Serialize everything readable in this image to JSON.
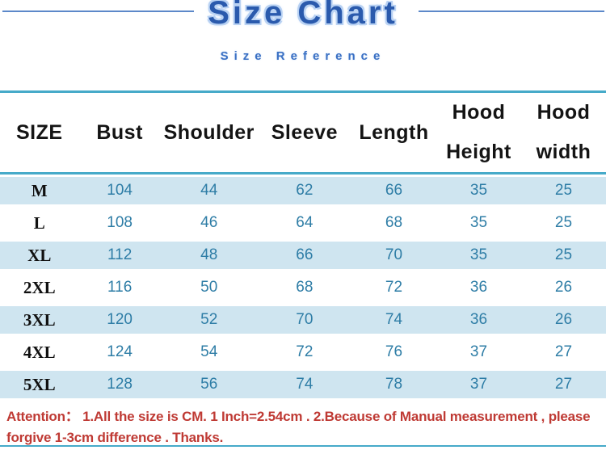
{
  "header": {
    "title": "Size Chart",
    "subtitle": "Size Reference"
  },
  "table": {
    "columns": [
      {
        "line1": "SIZE",
        "line2": ""
      },
      {
        "line1": "Bust",
        "line2": ""
      },
      {
        "line1": "Shoulder",
        "line2": ""
      },
      {
        "line1": "Sleeve",
        "line2": ""
      },
      {
        "line1": "Length",
        "line2": ""
      },
      {
        "line1": "Hood",
        "line2": "Height"
      },
      {
        "line1": "Hood",
        "line2": "width"
      }
    ],
    "rows": [
      {
        "size": "M",
        "values": [
          104,
          44,
          62,
          66,
          35,
          25
        ]
      },
      {
        "size": "L",
        "values": [
          108,
          46,
          64,
          68,
          35,
          25
        ]
      },
      {
        "size": "XL",
        "values": [
          112,
          48,
          66,
          70,
          35,
          25
        ]
      },
      {
        "size": "2XL",
        "values": [
          116,
          50,
          68,
          72,
          36,
          26
        ]
      },
      {
        "size": "3XL",
        "values": [
          120,
          52,
          70,
          74,
          36,
          26
        ]
      },
      {
        "size": "4XL",
        "values": [
          124,
          54,
          72,
          76,
          37,
          27
        ]
      },
      {
        "size": "5XL",
        "values": [
          128,
          56,
          74,
          78,
          37,
          27
        ]
      }
    ]
  },
  "footer": {
    "attention": "Attention：  1.All the size is CM. 1 Inch=2.54cm . 2.Because of Manual measurement , please forgive 1-3cm difference . Thanks."
  },
  "colors": {
    "title_blue": "#2a5aad",
    "title_glow": "#b9d2f3",
    "subtitle_blue": "#3a70c4",
    "line_blue": "#5c88c9",
    "teal_border": "#46aac9",
    "row_blue": "#cfe5f0",
    "value_teal": "#2e7da6",
    "attention_red": "#bf3a34"
  },
  "chart_data": {
    "type": "table",
    "title": "Size Chart",
    "subtitle": "Size Reference",
    "unit": "cm",
    "columns": [
      "SIZE",
      "Bust",
      "Shoulder",
      "Sleeve",
      "Length",
      "Hood Height",
      "Hood width"
    ],
    "rows": [
      [
        "M",
        104,
        44,
        62,
        66,
        35,
        25
      ],
      [
        "L",
        108,
        46,
        64,
        68,
        35,
        25
      ],
      [
        "XL",
        112,
        48,
        66,
        70,
        35,
        25
      ],
      [
        "2XL",
        116,
        50,
        68,
        72,
        36,
        26
      ],
      [
        "3XL",
        120,
        52,
        70,
        74,
        36,
        26
      ],
      [
        "4XL",
        124,
        54,
        72,
        76,
        37,
        27
      ],
      [
        "5XL",
        128,
        56,
        74,
        78,
        37,
        27
      ]
    ],
    "note": "Attention：  1.All the size is CM. 1 Inch=2.54cm . 2.Because of Manual measurement , please forgive 1-3cm difference . Thanks."
  }
}
